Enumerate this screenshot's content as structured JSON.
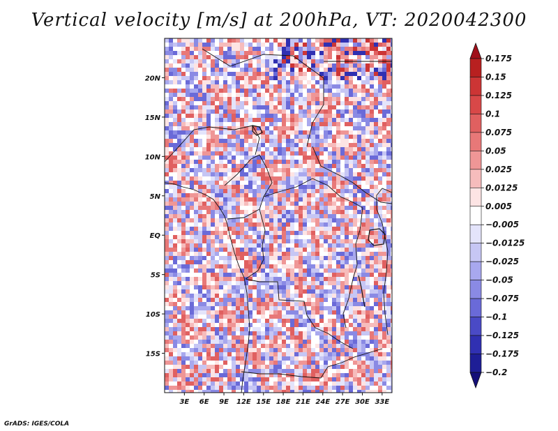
{
  "title": "Vertical velocity [m/s] at 200hPa, VT: 2020042300",
  "footer": "GrADS: IGES/COLA",
  "chart_data": {
    "type": "heatmap",
    "title": "Vertical velocity [m/s] at 200hPa, VT: 2020042300",
    "variable": "Vertical velocity",
    "units": "m/s",
    "level": "200hPa",
    "valid_time": "2020042300",
    "x_axis": {
      "name": "longitude",
      "range": [
        0,
        34.5
      ],
      "ticks": [
        3,
        6,
        9,
        12,
        15,
        18,
        21,
        24,
        27,
        30,
        33
      ],
      "tick_labels": [
        "3E",
        "6E",
        "9E",
        "12E",
        "15E",
        "18E",
        "21E",
        "24E",
        "27E",
        "30E",
        "33E"
      ]
    },
    "y_axis": {
      "name": "latitude",
      "range": [
        -20,
        25
      ],
      "ticks": [
        20,
        15,
        10,
        5,
        0,
        -5,
        -10,
        -15
      ],
      "tick_labels": [
        "20N",
        "15N",
        "10N",
        "5N",
        "EQ",
        "5S",
        "10S",
        "15S"
      ]
    },
    "colorbar": {
      "levels": [
        0.175,
        0.15,
        0.125,
        0.1,
        0.075,
        0.05,
        0.025,
        0.0125,
        0.005,
        -0.005,
        -0.0125,
        -0.025,
        -0.05,
        -0.075,
        -0.1,
        -0.125,
        -0.175,
        -0.2
      ],
      "labels": [
        "0.175",
        "0.15",
        "0.125",
        "0.1",
        "0.075",
        "0.05",
        "0.025",
        "0.0125",
        "0.005",
        "−0.005",
        "−0.0125",
        "−0.025",
        "−0.05",
        "−0.075",
        "−0.1",
        "−0.125",
        "−0.175",
        "−0.2"
      ],
      "colors": [
        "#a0101a",
        "#b82020",
        "#cc3535",
        "#d84848",
        "#e06060",
        "#e87878",
        "#ef9696",
        "#f6bcbc",
        "#fde4e4",
        "#ffffff",
        "#e4e4fb",
        "#c6c6f4",
        "#a8a8ee",
        "#8a8ae4",
        "#6a6ad8",
        "#4a4ac6",
        "#3030b2",
        "#1e1e96",
        "#140f78"
      ]
    },
    "field_tendency": "mixed small-scale positive (red) and negative (blue) cells; strongest ascent near 22N 20-30E"
  }
}
